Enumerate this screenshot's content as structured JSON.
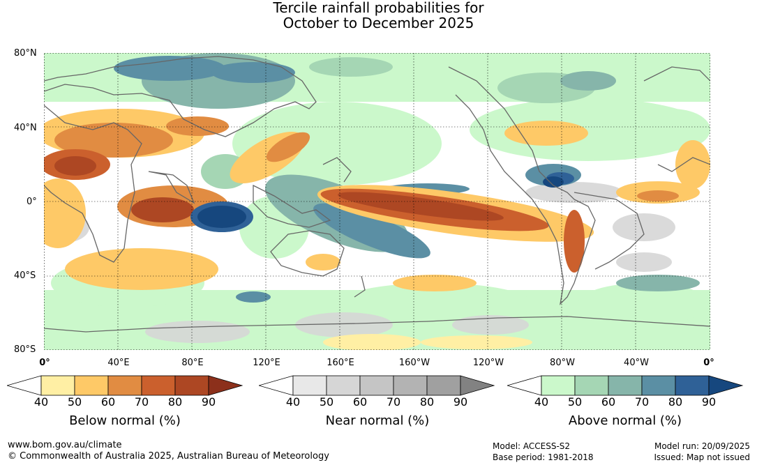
{
  "title": {
    "line1": "Tercile rainfall probabilities for",
    "line2": "October to December 2025"
  },
  "map": {
    "lat_labels": [
      "80°N",
      "40°N",
      "0°",
      "40°S",
      "80°S"
    ],
    "lon_labels": [
      "0°",
      "40°E",
      "80°E",
      "120°E",
      "160°E",
      "160°W",
      "120°W",
      "80°W",
      "40°W",
      "0°"
    ]
  },
  "legends": [
    {
      "label": "Below normal (%)",
      "ticks": [
        "40",
        "50",
        "60",
        "70",
        "80",
        "90"
      ],
      "colors": [
        "#ffffff",
        "#ffefa4",
        "#fec967",
        "#e18c42",
        "#cb602d",
        "#ad4723",
        "#8c301b"
      ]
    },
    {
      "label": "Near normal (%)",
      "ticks": [
        "40",
        "50",
        "60",
        "70",
        "80",
        "90"
      ],
      "colors": [
        "#ffffff",
        "#e8e8e8",
        "#d6d6d6",
        "#c5c5c5",
        "#b3b3b3",
        "#a0a0a0",
        "#828282"
      ]
    },
    {
      "label": "Above normal (%)",
      "ticks": [
        "40",
        "50",
        "60",
        "70",
        "80",
        "90"
      ],
      "colors": [
        "#ffffff",
        "#cbf8cb",
        "#a5d6b4",
        "#86b5aa",
        "#5b8fa4",
        "#2f6197",
        "#16477e"
      ]
    }
  ],
  "footer": {
    "url": "www.bom.gov.au/climate",
    "copyright": "© Commonwealth of Australia 2025, Australian Bureau of Meteorology",
    "model": "Model: ACCESS-S2",
    "base_period": "Base period: 1981-2018",
    "model_run": "Model run: 20/09/2025",
    "issued": "Issued: Map not issued"
  }
}
